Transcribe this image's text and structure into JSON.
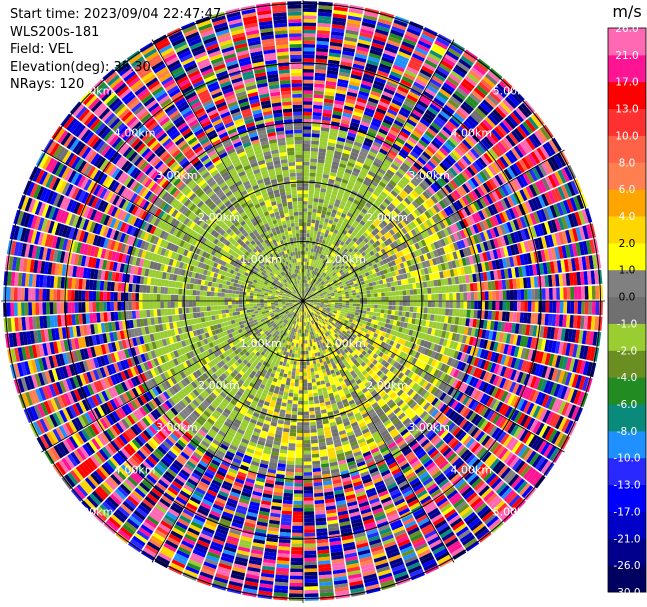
{
  "header": {
    "start_time": "Start time: 2023/09/04 22:47:47",
    "instrument": "WLS200s-181",
    "field": "Field: VEL",
    "elevation": "Elevation(deg): 35.30",
    "nrays": "NRays: 120"
  },
  "chart_data": {
    "type": "polar-ppi",
    "field": "VEL",
    "units": "m/s",
    "n_rays": 120,
    "elevation_deg": 35.3,
    "range_rings_km": [
      1.0,
      2.0,
      3.0,
      4.0,
      5.0
    ],
    "range_ring_labels": [
      "1.00km",
      "2.00km",
      "3.00km",
      "4.00km",
      "5.00km"
    ],
    "max_range_km": 5.1,
    "colorbar": {
      "label": "m/s",
      "boundaries": [
        -30.0,
        -26.0,
        -21.0,
        -17.0,
        -13.0,
        -10.0,
        -8.0,
        -6.0,
        -4.0,
        -2.0,
        -1.0,
        0.0,
        1.0,
        2.0,
        4.0,
        6.0,
        8.0,
        10.0,
        13.0,
        17.0,
        21.0,
        26.0
      ],
      "tick_labels": [
        "-30.0",
        "-26.0",
        "-21.0",
        "-17.0",
        "-13.0",
        "-10.0",
        "-8.0",
        "-6.0",
        "-4.0",
        "-2.0",
        "-1.0",
        "0.0",
        "1.0",
        "2.0",
        "4.0",
        "6.0",
        "8.0",
        "10.0",
        "13.0",
        "17.0",
        "21.0",
        "26.0"
      ],
      "colors": [
        "#000060",
        "#00008c",
        "#0000c8",
        "#0000ff",
        "#2828ff",
        "#1e90ff",
        "#0a8a7a",
        "#228b22",
        "#6b8e23",
        "#9acd32",
        "#707070",
        "#808080",
        "#ffff00",
        "#ffd700",
        "#ffa500",
        "#ff7f50",
        "#ff6347",
        "#ff3030",
        "#ff0000",
        "#ff1493",
        "#ff69b4"
      ]
    }
  }
}
